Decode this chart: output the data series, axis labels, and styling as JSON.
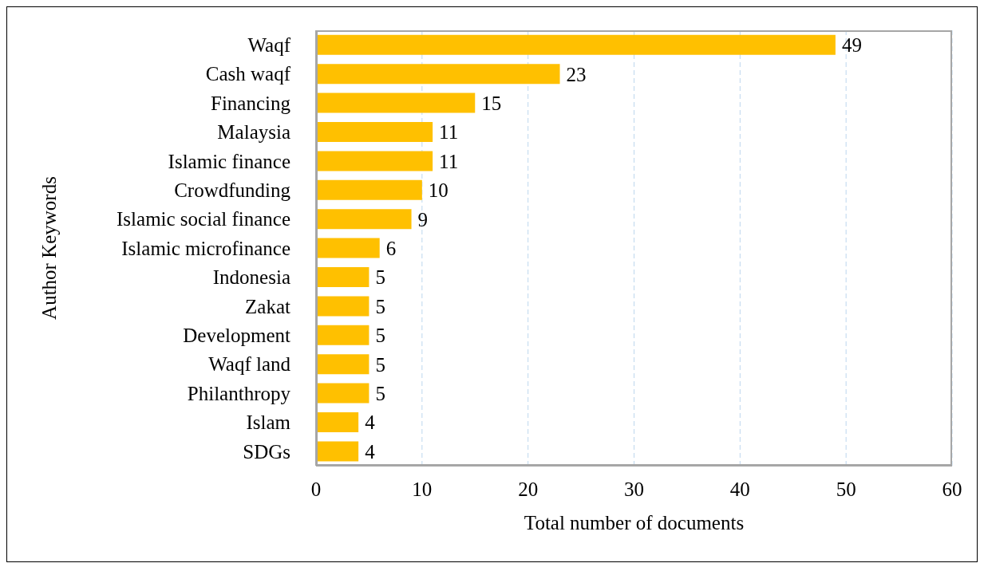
{
  "chart_data": {
    "type": "bar",
    "orientation": "horizontal",
    "xlabel": "Total number of documents",
    "ylabel": "Author Keywords",
    "categories": [
      "Waqf",
      "Cash waqf",
      "Financing",
      "Malaysia",
      "Islamic finance",
      "Crowdfunding",
      "Islamic social finance",
      "Islamic microfinance",
      "Indonesia",
      "Zakat",
      "Development",
      "Waqf land",
      "Philanthropy",
      "Islam",
      "SDGs"
    ],
    "values": [
      49,
      23,
      15,
      11,
      11,
      10,
      9,
      6,
      5,
      5,
      5,
      5,
      5,
      4,
      4
    ],
    "color": "#ffc000",
    "xlim": [
      0,
      60
    ],
    "xticks": [
      0,
      10,
      20,
      30,
      40,
      50,
      60
    ],
    "grid": "x",
    "data_labels": true
  }
}
